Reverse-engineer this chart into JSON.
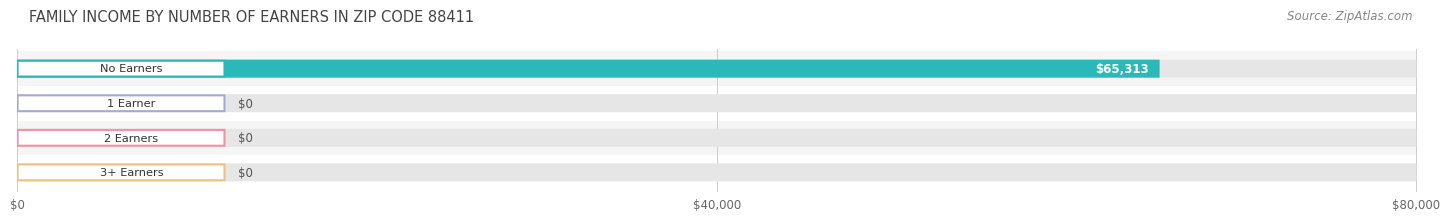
{
  "title": "FAMILY INCOME BY NUMBER OF EARNERS IN ZIP CODE 88411",
  "source": "Source: ZipAtlas.com",
  "categories": [
    "No Earners",
    "1 Earner",
    "2 Earners",
    "3+ Earners"
  ],
  "values": [
    65313,
    0,
    0,
    0
  ],
  "bar_colors": [
    "#2ab8b8",
    "#a8a8d8",
    "#f090a8",
    "#f0c080"
  ],
  "value_labels": [
    "$65,313",
    "$0",
    "$0",
    "$0"
  ],
  "xlim": [
    0,
    80000
  ],
  "xticks": [
    0,
    40000,
    80000
  ],
  "xticklabels": [
    "$0",
    "$40,000",
    "$80,000"
  ],
  "title_fontsize": 10.5,
  "source_fontsize": 8.5,
  "bar_height": 0.52,
  "background_color": "#ffffff",
  "row_bg_colors": [
    "#f5f5f5",
    "#ffffff",
    "#f5f5f5",
    "#ffffff"
  ]
}
